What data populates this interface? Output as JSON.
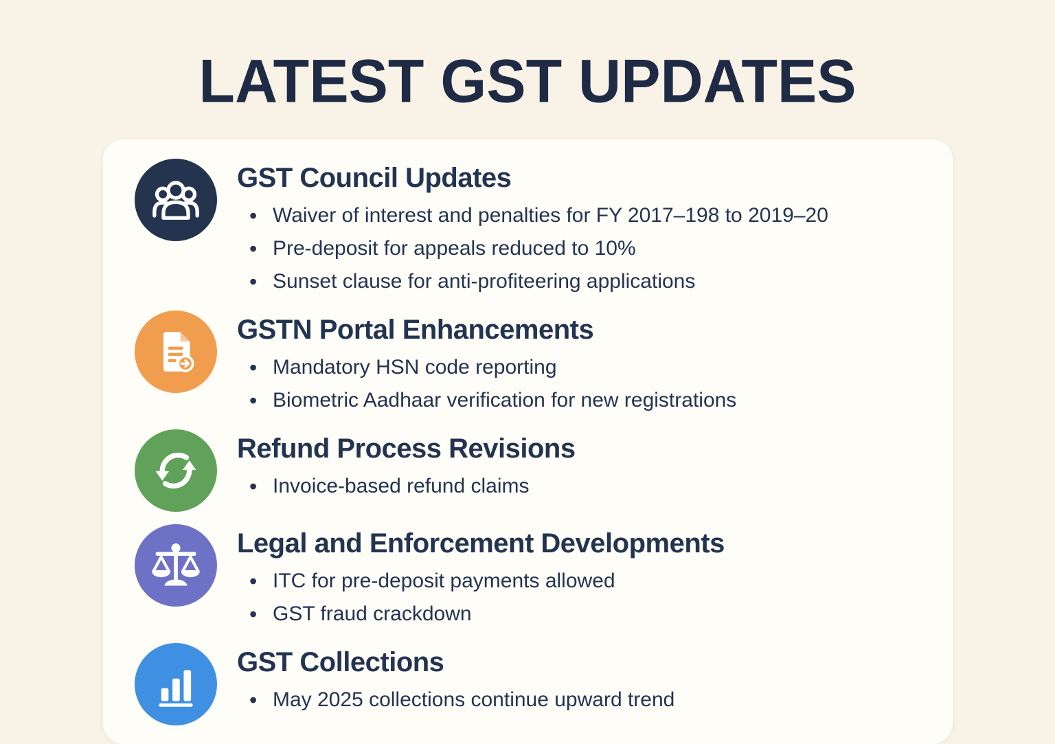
{
  "page": {
    "title": "LATEST GST UPDATES",
    "background_color": "#f8f3e6",
    "card_color": "#fffdf8",
    "text_color": "#233450"
  },
  "sections": [
    {
      "icon": "people-group-icon",
      "icon_color": "#24344f",
      "heading": "GST Council Updates",
      "bullets": [
        "Waiver of interest and penalties for FY 2017–198 to 2019–20",
        "Pre-deposit for appeals reduced to 10%",
        "Sunset clause for anti-profiteering applications"
      ]
    },
    {
      "icon": "document-icon",
      "icon_color": "#f09e4d",
      "heading": "GSTN Portal Enhancements",
      "bullets": [
        "Mandatory HSN code reporting",
        "Biometric Aadhaar verification for new registrations"
      ]
    },
    {
      "icon": "refresh-icon",
      "icon_color": "#60a25a",
      "heading": "Refund Process Revisions",
      "bullets": [
        "Invoice-based refund claims"
      ]
    },
    {
      "icon": "scales-icon",
      "icon_color": "#6e72c7",
      "heading": "Legal and Enforcement Developments",
      "bullets": [
        "ITC for pre-deposit payments allowed",
        "GST fraud crackdown"
      ]
    },
    {
      "icon": "bar-chart-icon",
      "icon_color": "#3f90e3",
      "heading": "GST Collections",
      "bullets": [
        "May 2025 collections continue upward trend"
      ]
    }
  ]
}
